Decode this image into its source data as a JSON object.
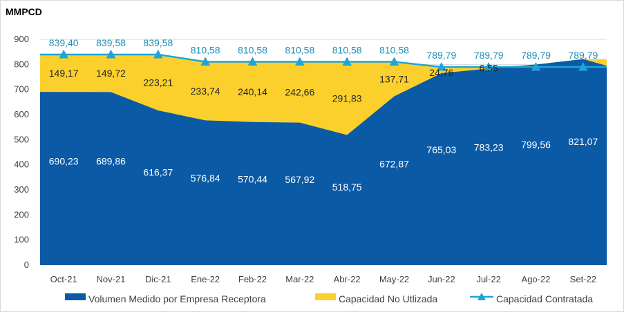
{
  "chart_data": {
    "type": "area",
    "ylabel": "MMPCD",
    "ylim": [
      0,
      900
    ],
    "yticks": [
      0,
      100,
      200,
      300,
      400,
      500,
      600,
      700,
      800,
      900
    ],
    "categories": [
      "Oct-21",
      "Nov-21",
      "Dic-21",
      "Ene-22",
      "Feb-22",
      "Mar-22",
      "Abr-22",
      "May-22",
      "Jun-22",
      "Jul-22",
      "Ago-22",
      "Set-22"
    ],
    "series": [
      {
        "name": "Volumen Medido por Empresa Receptora",
        "kind": "area",
        "color": "#0b5aa6",
        "values": [
          690.23,
          689.86,
          616.37,
          576.84,
          570.44,
          567.92,
          518.75,
          672.87,
          765.03,
          783.23,
          799.56,
          821.07
        ],
        "labels": [
          "690,23",
          "689,86",
          "616,37",
          "576,84",
          "570,44",
          "567,92",
          "518,75",
          "672,87",
          "765,03",
          "783,23",
          "799,56",
          "821,07"
        ]
      },
      {
        "name": "Capacidad No Utlizada",
        "kind": "stacked-area",
        "color": "#fcd02c",
        "values": [
          149.17,
          149.72,
          223.21,
          233.74,
          240.14,
          242.66,
          291.83,
          137.71,
          24.76,
          6.55,
          0,
          0
        ],
        "labels": [
          "149,17",
          "149,72",
          "223,21",
          "233,74",
          "240,14",
          "242,66",
          "291,83",
          "137,71",
          "24,76",
          "6,55",
          "",
          ""
        ]
      },
      {
        "name": "Capacidad Contratada",
        "kind": "line",
        "color": "#1fa4d8",
        "values": [
          839.4,
          839.58,
          839.58,
          810.58,
          810.58,
          810.58,
          810.58,
          810.58,
          789.79,
          789.79,
          789.79,
          789.79
        ],
        "labels": [
          "839,40",
          "839,58",
          "839,58",
          "810,58",
          "810,58",
          "810,58",
          "810,58",
          "810,58",
          "789,79",
          "789,79",
          "789,79",
          "789,79"
        ]
      }
    ],
    "legend_position": "bottom",
    "grid": true
  }
}
